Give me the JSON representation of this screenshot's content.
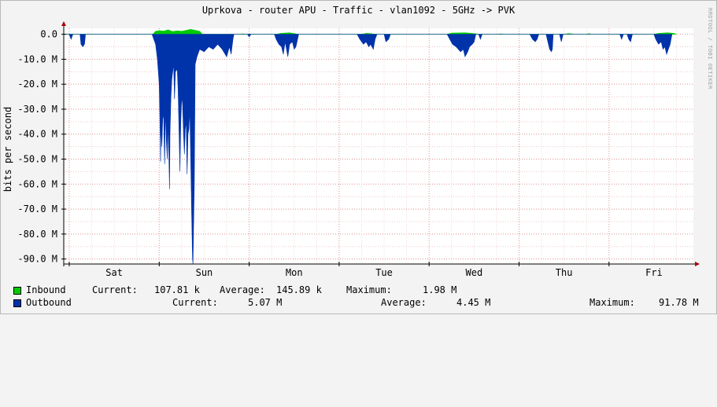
{
  "chart_data": {
    "type": "area",
    "title": "Uprkova - router APU - Traffic - vlan1092 - 5GHz -> PVK",
    "ylabel": "bits per second",
    "watermark": "RRDTOOL / TOBI OETIKER",
    "ylim": [
      -92,
      2.4
    ],
    "y_unit": "M bits/s",
    "xlim_days": [
      0,
      7
    ],
    "y_ticks": [
      {
        "value": 0,
        "label": "0.0"
      },
      {
        "value": -10,
        "label": "-10.0 M"
      },
      {
        "value": -20,
        "label": "-20.0 M"
      },
      {
        "value": -30,
        "label": "-30.0 M"
      },
      {
        "value": -40,
        "label": "-40.0 M"
      },
      {
        "value": -50,
        "label": "-50.0 M"
      },
      {
        "value": -60,
        "label": "-60.0 M"
      },
      {
        "value": -70,
        "label": "-70.0 M"
      },
      {
        "value": -80,
        "label": "-80.0 M"
      },
      {
        "value": -90,
        "label": "-90.0 M"
      }
    ],
    "x_ticks": [
      {
        "day": 0.5,
        "label": "Sat"
      },
      {
        "day": 1.5,
        "label": "Sun"
      },
      {
        "day": 2.5,
        "label": "Mon"
      },
      {
        "day": 3.5,
        "label": "Tue"
      },
      {
        "day": 4.5,
        "label": "Wed"
      },
      {
        "day": 5.5,
        "label": "Thu"
      },
      {
        "day": 6.5,
        "label": "Fri"
      }
    ],
    "day_boundaries": [
      0,
      1,
      2,
      3,
      4,
      5,
      6
    ],
    "grid": true,
    "series": [
      {
        "name": "Inbound",
        "color": "#00cc00",
        "direction": "up",
        "points": [
          [
            -0.35,
            0
          ],
          [
            -0.33,
            0.6
          ],
          [
            -0.3,
            0.5
          ],
          [
            -0.27,
            0.3
          ],
          [
            -0.25,
            0
          ],
          [
            0.93,
            0
          ],
          [
            0.96,
            1.2
          ],
          [
            1.0,
            1.5
          ],
          [
            1.05,
            1.3
          ],
          [
            1.1,
            1.8
          ],
          [
            1.15,
            1.1
          ],
          [
            1.2,
            1.4
          ],
          [
            1.25,
            1.2
          ],
          [
            1.3,
            1.6
          ],
          [
            1.35,
            2.0
          ],
          [
            1.4,
            1.6
          ],
          [
            1.45,
            1.2
          ],
          [
            1.48,
            0
          ],
          [
            1.9,
            0
          ],
          [
            1.93,
            0.2
          ],
          [
            1.96,
            0
          ],
          [
            2.3,
            0
          ],
          [
            2.35,
            0.4
          ],
          [
            2.45,
            0.6
          ],
          [
            2.5,
            0.3
          ],
          [
            2.55,
            0
          ],
          [
            3.25,
            0
          ],
          [
            3.3,
            0.4
          ],
          [
            3.35,
            0.3
          ],
          [
            3.4,
            0
          ],
          [
            4.2,
            0
          ],
          [
            4.25,
            0.5
          ],
          [
            4.4,
            0.6
          ],
          [
            4.5,
            0.3
          ],
          [
            4.55,
            0
          ],
          [
            4.77,
            0
          ],
          [
            4.8,
            0.2
          ],
          [
            4.83,
            0
          ],
          [
            5.5,
            0
          ],
          [
            5.55,
            0.3
          ],
          [
            5.62,
            0
          ],
          [
            5.75,
            0
          ],
          [
            5.78,
            0.3
          ],
          [
            5.8,
            0
          ],
          [
            6.5,
            0
          ],
          [
            6.55,
            0.4
          ],
          [
            6.65,
            0.6
          ],
          [
            6.72,
            0.4
          ],
          [
            6.75,
            0
          ]
        ]
      },
      {
        "name": "Outbound",
        "color": "#0033aa",
        "direction": "down",
        "points": [
          [
            -0.37,
            0
          ],
          [
            -0.365,
            -20
          ],
          [
            -0.36,
            -18
          ],
          [
            -0.35,
            -14
          ],
          [
            -0.34,
            -10
          ],
          [
            -0.33,
            -6
          ],
          [
            -0.32,
            -9
          ],
          [
            -0.31,
            -5
          ],
          [
            -0.3,
            -8
          ],
          [
            -0.29,
            -4
          ],
          [
            -0.27,
            -2
          ],
          [
            -0.25,
            -2
          ],
          [
            -0.24,
            0
          ],
          [
            -0.15,
            0
          ],
          [
            -0.13,
            -2
          ],
          [
            -0.11,
            0
          ],
          [
            0.0,
            0
          ],
          [
            0.02,
            -2
          ],
          [
            0.04,
            0
          ],
          [
            0.12,
            0
          ],
          [
            0.13,
            -4
          ],
          [
            0.15,
            -5
          ],
          [
            0.17,
            -4
          ],
          [
            0.18,
            0
          ],
          [
            0.92,
            0
          ],
          [
            0.94,
            -2
          ],
          [
            0.96,
            -4
          ],
          [
            0.98,
            -10
          ],
          [
            1.0,
            -20
          ],
          [
            1.01,
            -38
          ],
          [
            1.015,
            -51
          ],
          [
            1.02,
            -37
          ],
          [
            1.03,
            -45
          ],
          [
            1.04,
            -32
          ],
          [
            1.05,
            -34
          ],
          [
            1.06,
            -52
          ],
          [
            1.07,
            -30
          ],
          [
            1.08,
            -43
          ],
          [
            1.09,
            -50
          ],
          [
            1.1,
            -35
          ],
          [
            1.115,
            -62
          ],
          [
            1.12,
            -40
          ],
          [
            1.13,
            -25
          ],
          [
            1.14,
            -18
          ],
          [
            1.16,
            -12
          ],
          [
            1.17,
            -26
          ],
          [
            1.18,
            -15
          ],
          [
            1.2,
            -14
          ],
          [
            1.21,
            -22
          ],
          [
            1.22,
            -38
          ],
          [
            1.23,
            -55
          ],
          [
            1.24,
            -35
          ],
          [
            1.25,
            -25
          ],
          [
            1.26,
            -28
          ],
          [
            1.27,
            -40
          ],
          [
            1.28,
            -48
          ],
          [
            1.29,
            -38
          ],
          [
            1.3,
            -35
          ],
          [
            1.31,
            -56
          ],
          [
            1.32,
            -40
          ],
          [
            1.33,
            -38
          ],
          [
            1.34,
            -30
          ],
          [
            1.35,
            -50
          ],
          [
            1.36,
            -70
          ],
          [
            1.37,
            -90
          ],
          [
            1.375,
            -92
          ],
          [
            1.38,
            -82
          ],
          [
            1.39,
            -60
          ],
          [
            1.4,
            -12
          ],
          [
            1.42,
            -9
          ],
          [
            1.45,
            -6
          ],
          [
            1.5,
            -7
          ],
          [
            1.55,
            -5
          ],
          [
            1.6,
            -6
          ],
          [
            1.65,
            -4
          ],
          [
            1.7,
            -6
          ],
          [
            1.75,
            -9
          ],
          [
            1.78,
            -5
          ],
          [
            1.8,
            -8
          ],
          [
            1.82,
            -2
          ],
          [
            1.83,
            0
          ],
          [
            1.98,
            0
          ],
          [
            2.0,
            -1
          ],
          [
            2.02,
            0
          ],
          [
            2.28,
            0
          ],
          [
            2.3,
            -2
          ],
          [
            2.33,
            -4
          ],
          [
            2.36,
            -5
          ],
          [
            2.38,
            -8
          ],
          [
            2.4,
            -3
          ],
          [
            2.43,
            -9
          ],
          [
            2.45,
            -4
          ],
          [
            2.48,
            -3
          ],
          [
            2.5,
            -6
          ],
          [
            2.52,
            -5
          ],
          [
            2.55,
            0
          ],
          [
            3.2,
            0
          ],
          [
            3.23,
            -2
          ],
          [
            3.27,
            -4
          ],
          [
            3.3,
            -3
          ],
          [
            3.33,
            -5
          ],
          [
            3.35,
            -4
          ],
          [
            3.38,
            -6
          ],
          [
            3.4,
            -2
          ],
          [
            3.42,
            0
          ],
          [
            3.5,
            0
          ],
          [
            3.52,
            -3
          ],
          [
            3.55,
            -2
          ],
          [
            3.57,
            0
          ],
          [
            4.2,
            0
          ],
          [
            4.23,
            -2
          ],
          [
            4.26,
            -4
          ],
          [
            4.3,
            -5
          ],
          [
            4.35,
            -7
          ],
          [
            4.38,
            -6
          ],
          [
            4.4,
            -9
          ],
          [
            4.43,
            -7
          ],
          [
            4.45,
            -5
          ],
          [
            4.48,
            -4
          ],
          [
            4.5,
            -3
          ],
          [
            4.52,
            0
          ],
          [
            4.55,
            0
          ],
          [
            4.57,
            -2
          ],
          [
            4.59,
            0
          ],
          [
            5.12,
            0
          ],
          [
            5.15,
            -2
          ],
          [
            5.18,
            -3
          ],
          [
            5.2,
            -2
          ],
          [
            5.22,
            0
          ],
          [
            5.3,
            0
          ],
          [
            5.32,
            -3
          ],
          [
            5.34,
            -6
          ],
          [
            5.36,
            -7
          ],
          [
            5.37,
            -6
          ],
          [
            5.38,
            0
          ],
          [
            5.45,
            0
          ],
          [
            5.47,
            -3
          ],
          [
            5.49,
            0
          ],
          [
            6.12,
            0
          ],
          [
            6.14,
            -2
          ],
          [
            6.16,
            0
          ],
          [
            6.2,
            0
          ],
          [
            6.22,
            -2
          ],
          [
            6.24,
            -3
          ],
          [
            6.26,
            0
          ],
          [
            6.5,
            0
          ],
          [
            6.52,
            -2
          ],
          [
            6.55,
            -4
          ],
          [
            6.58,
            -3
          ],
          [
            6.6,
            -6
          ],
          [
            6.62,
            -5
          ],
          [
            6.64,
            -8
          ],
          [
            6.66,
            -6
          ],
          [
            6.68,
            -4
          ],
          [
            6.7,
            0
          ]
        ]
      }
    ]
  },
  "legend": {
    "inbound": {
      "name": "Inbound",
      "color": "#00cc00",
      "current_label": "Current:",
      "current": "107.81 k",
      "average_label": "Average:",
      "average": "145.89 k",
      "maximum_label": "Maximum:",
      "maximum": "1.98 M"
    },
    "outbound": {
      "name": "Outbound",
      "color": "#0033aa",
      "current_label": "Current:",
      "current": "5.07 M",
      "average_label": "Average:",
      "average": "4.45 M",
      "maximum_label": "Maximum:",
      "maximum": "91.78 M"
    }
  }
}
